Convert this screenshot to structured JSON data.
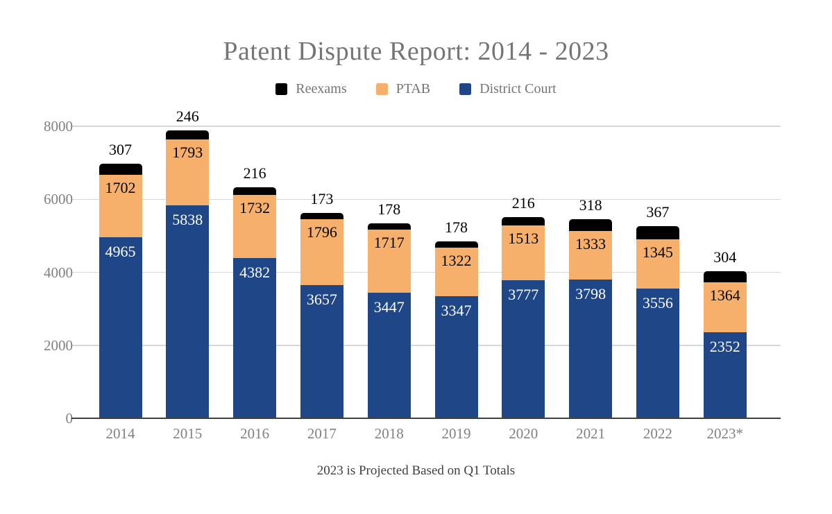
{
  "chart_data": {
    "type": "bar",
    "variant": "stacked-column",
    "title": "Patent Dispute Report: 2014 - 2023",
    "footnote": "2023 is Projected Based on Q1 Totals",
    "categories": [
      "2014",
      "2015",
      "2016",
      "2017",
      "2018",
      "2019",
      "2020",
      "2021",
      "2022",
      "2023*"
    ],
    "series": [
      {
        "name": "District Court",
        "color": "#1F4787",
        "label_color": "#ffffff",
        "label_position": "inside-top",
        "values": [
          4965,
          5838,
          4382,
          3657,
          3447,
          3347,
          3777,
          3798,
          3556,
          2352
        ]
      },
      {
        "name": "PTAB",
        "color": "#F6B06B",
        "label_color": "#000000",
        "label_position": "inside-top",
        "values": [
          1702,
          1793,
          1732,
          1796,
          1717,
          1322,
          1513,
          1333,
          1345,
          1364
        ]
      },
      {
        "name": "Reexams",
        "color": "#000000",
        "label_color": "#000000",
        "label_position": "above",
        "values": [
          307,
          246,
          216,
          173,
          178,
          178,
          216,
          318,
          367,
          304
        ]
      }
    ],
    "totals": [
      6974,
      7877,
      6330,
      5626,
      5342,
      4847,
      5506,
      5449,
      5268,
      4020
    ],
    "legend": {
      "position": "top",
      "items": [
        {
          "label": "Reexams",
          "color": "#000000"
        },
        {
          "label": "PTAB",
          "color": "#F6B06B"
        },
        {
          "label": "District Court",
          "color": "#1F4787"
        }
      ]
    },
    "y_axis": {
      "ticks": [
        0,
        2000,
        4000,
        6000,
        8000
      ],
      "range": [
        0,
        8000
      ],
      "grid": true,
      "grid_color": "#d6d6d6",
      "axis_color": "#404040",
      "tick_color": "#818181"
    },
    "x_axis": {
      "tick_color": "#818181"
    }
  }
}
